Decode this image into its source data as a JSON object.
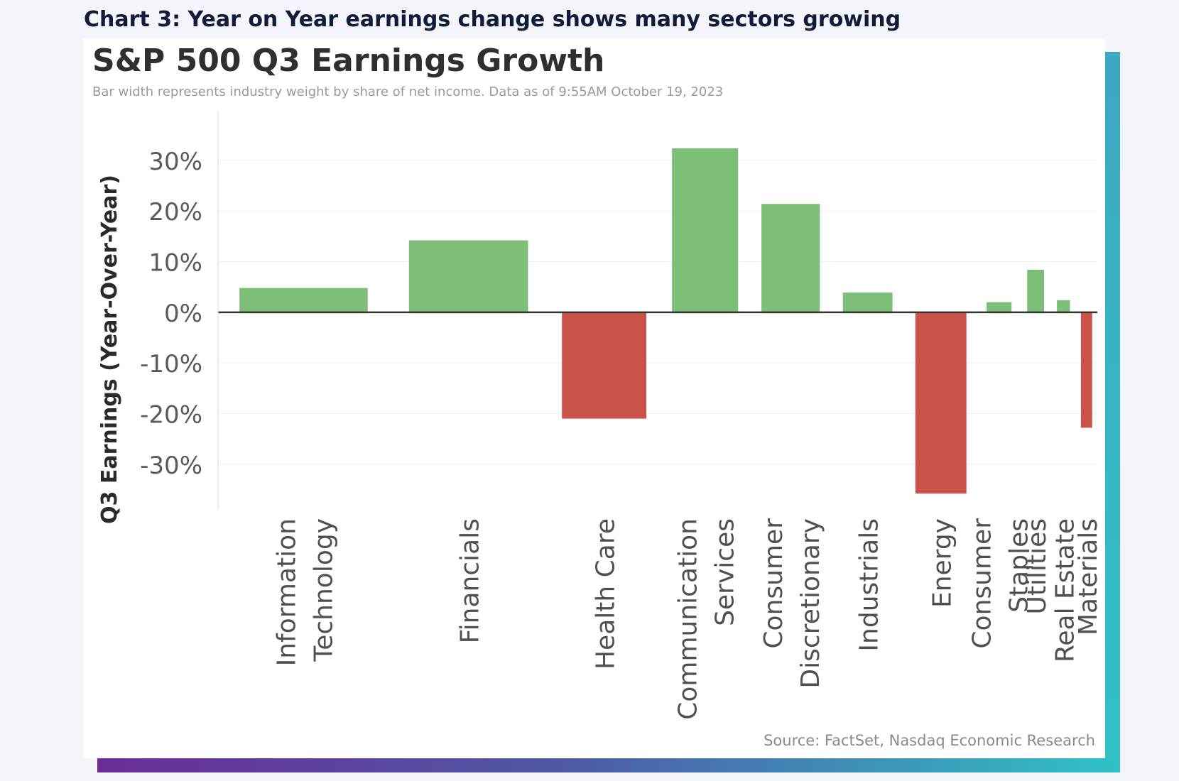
{
  "caption": "Chart 3: Year on Year earnings change shows many sectors growing",
  "colors": {
    "positive": "#7dbf79",
    "negative": "#c9534a",
    "frame_gradient_start": "#6a2d97",
    "frame_gradient_end": "#2fc2c5"
  },
  "chart_data": {
    "type": "bar",
    "title": "S&P 500 Q3 Earnings Growth",
    "subtitle": "Bar width represents industry weight by share of net income. Data as of 9:55AM October 19, 2023",
    "ylabel": "Q3 Earnings (Year-Over-Year)",
    "xlabel": "",
    "ylim": [
      -39,
      37
    ],
    "yticks": [
      30,
      20,
      10,
      0,
      -10,
      -20,
      -30
    ],
    "ytick_labels": [
      "30%",
      "20%",
      "10%",
      "0%",
      "-10%",
      "-20%",
      "-30%"
    ],
    "grid": true,
    "categories": [
      "Information Technology",
      "Financials",
      "Health Care",
      "Communication Services",
      "Consumer Discretionary",
      "Industrials",
      "Energy",
      "Consumer Staples",
      "Utilities",
      "Real Estate",
      "Materials"
    ],
    "category_lines": [
      [
        "Information",
        "Technology"
      ],
      [
        "Financials"
      ],
      [
        "Health Care"
      ],
      [
        "Communication",
        "Services"
      ],
      [
        "Consumer",
        "Discretionary"
      ],
      [
        "Industrials"
      ],
      [
        "Energy"
      ],
      [
        "Consumer",
        "Staples"
      ],
      [
        "Utilities"
      ],
      [
        "Real Estate"
      ],
      [
        "Materials"
      ]
    ],
    "values": [
      4.8,
      14.2,
      -21.0,
      32.4,
      21.4,
      3.9,
      -35.8,
      2.0,
      8.4,
      2.4,
      -22.8
    ],
    "weights": [
      22.2,
      20.6,
      14.6,
      11.6,
      10.6,
      9.4,
      9.6,
      5.5,
      4.0,
      3.2,
      2.8
    ],
    "source": "Source: FactSet, Nasdaq Economic Research"
  }
}
